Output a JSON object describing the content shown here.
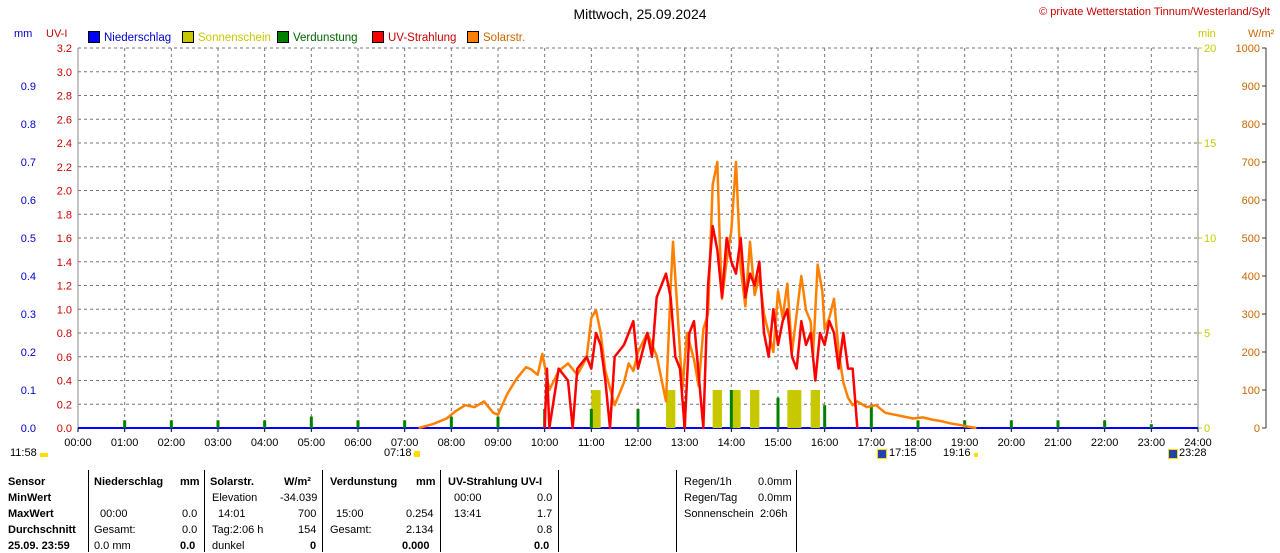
{
  "header": {
    "title": "Mittwoch, 25.09.2024",
    "credit": "© private Wetterstation Tinnum/Westerland/Sylt"
  },
  "axis_units": {
    "left_outer": "mm",
    "left_inner": "UV-I",
    "right_inner": "min",
    "right_outer": "W/m²"
  },
  "legend": [
    {
      "label": "Niederschlag",
      "color": "#0000ff"
    },
    {
      "label": "Sonnenschein",
      "color": "#c8c800"
    },
    {
      "label": "Verdunstung",
      "color": "#008000"
    },
    {
      "label": "UV-Strahlung",
      "color": "#ff0000"
    },
    {
      "label": "Solarstr.",
      "color": "#ff8000"
    }
  ],
  "astro": {
    "moonrise": "11:58",
    "sunrise": "07:18",
    "moonset": "17:15",
    "sunset": "19:16",
    "last": "23:28"
  },
  "chart_data": {
    "type": "line",
    "x_ticks": [
      "00:00",
      "01:00",
      "02:00",
      "03:00",
      "04:00",
      "05:00",
      "06:00",
      "07:00",
      "08:00",
      "09:00",
      "10:00",
      "11:00",
      "12:00",
      "13:00",
      "14:00",
      "15:00",
      "16:00",
      "17:00",
      "18:00",
      "19:00",
      "20:00",
      "21:00",
      "22:00",
      "23:00",
      "24:00"
    ],
    "y_axes": {
      "precip_mm": {
        "ticks": [
          "0.0",
          "0.1",
          "0.2",
          "0.3",
          "0.4",
          "0.5",
          "0.6",
          "0.7",
          "0.8",
          "0.9"
        ],
        "range": [
          0,
          1.0
        ]
      },
      "uv_index": {
        "ticks": [
          "0.0",
          "0.2",
          "0.4",
          "0.6",
          "0.8",
          "1.0",
          "1.2",
          "1.4",
          "1.6",
          "1.8",
          "2.0",
          "2.2",
          "2.4",
          "2.6",
          "2.8",
          "3.0",
          "3.2"
        ],
        "range": [
          0,
          3.2
        ]
      },
      "sunshine_min": {
        "ticks": [
          "0",
          "5",
          "10",
          "15",
          "20"
        ],
        "range": [
          0,
          20
        ]
      },
      "solar_wm2": {
        "ticks": [
          "0",
          "100",
          "200",
          "300",
          "400",
          "500",
          "600",
          "700",
          "800",
          "900",
          "1000"
        ],
        "range": [
          0,
          1000
        ]
      }
    },
    "series": [
      {
        "name": "Solarstr.",
        "color": "#ff8000",
        "x": [
          7.3,
          7.6,
          7.9,
          8.1,
          8.3,
          8.5,
          8.7,
          8.9,
          9.0,
          9.2,
          9.4,
          9.6,
          9.7,
          9.85,
          9.95,
          10.1,
          10.3,
          10.5,
          10.7,
          10.9,
          11.0,
          11.1,
          11.2,
          11.3,
          11.5,
          11.7,
          11.8,
          11.9,
          12.0,
          12.2,
          12.4,
          12.6,
          12.7,
          12.75,
          12.85,
          12.95,
          13.05,
          13.2,
          13.3,
          13.4,
          13.5,
          13.6,
          13.7,
          13.75,
          13.8,
          13.9,
          14.0,
          14.05,
          14.1,
          14.2,
          14.3,
          14.4,
          14.5,
          14.6,
          14.7,
          14.8,
          14.9,
          15.0,
          15.1,
          15.2,
          15.3,
          15.4,
          15.5,
          15.6,
          15.7,
          15.75,
          15.85,
          15.95,
          16.0,
          16.1,
          16.2,
          16.3,
          16.4,
          16.5,
          16.6,
          16.7,
          16.9,
          17.1,
          17.3,
          17.5,
          17.7,
          17.9,
          18.1,
          18.3,
          18.5,
          18.7,
          18.9,
          19.1,
          19.25
        ],
        "values": [
          0,
          10,
          25,
          45,
          60,
          55,
          70,
          40,
          35,
          90,
          130,
          160,
          155,
          140,
          195,
          100,
          150,
          170,
          140,
          185,
          290,
          310,
          250,
          150,
          60,
          120,
          170,
          150,
          200,
          250,
          190,
          70,
          370,
          490,
          300,
          100,
          250,
          180,
          110,
          260,
          300,
          640,
          700,
          500,
          340,
          440,
          520,
          610,
          700,
          420,
          320,
          490,
          350,
          400,
          300,
          250,
          200,
          360,
          290,
          380,
          200,
          300,
          400,
          310,
          280,
          190,
          430,
          360,
          260,
          290,
          340,
          200,
          120,
          80,
          60,
          70,
          55,
          60,
          40,
          35,
          30,
          25,
          28,
          22,
          18,
          12,
          8,
          3,
          0
        ]
      },
      {
        "name": "UV-Strahlung",
        "color": "#ff0000",
        "x": [
          10.0,
          10.05,
          10.1,
          10.3,
          10.5,
          10.6,
          10.7,
          10.9,
          11.0,
          11.1,
          11.2,
          11.3,
          11.4,
          11.5,
          11.7,
          11.9,
          12.0,
          12.2,
          12.3,
          12.4,
          12.6,
          12.7,
          12.8,
          12.9,
          13.0,
          13.1,
          13.2,
          13.4,
          13.5,
          13.6,
          13.7,
          13.8,
          13.9,
          14.0,
          14.1,
          14.2,
          14.3,
          14.4,
          14.5,
          14.6,
          14.7,
          14.8,
          14.9,
          15.0,
          15.1,
          15.2,
          15.3,
          15.4,
          15.5,
          15.6,
          15.7,
          15.8,
          15.9,
          16.0,
          16.1,
          16.2,
          16.3,
          16.4,
          16.5,
          16.6,
          16.7
        ],
        "values": [
          0,
          0.5,
          0.0,
          0.5,
          0.4,
          0.0,
          0.5,
          0.6,
          0.5,
          0.8,
          0.7,
          0.4,
          0.0,
          0.6,
          0.7,
          0.9,
          0.5,
          0.8,
          0.6,
          1.1,
          1.3,
          1.1,
          0.6,
          0.5,
          0.0,
          0.8,
          0.9,
          0.0,
          1.2,
          1.7,
          1.5,
          1.1,
          1.6,
          1.4,
          1.3,
          1.6,
          1.1,
          1.3,
          1.2,
          1.4,
          0.8,
          0.6,
          1.0,
          0.7,
          0.9,
          1.0,
          0.6,
          0.5,
          0.9,
          0.7,
          0.8,
          0.4,
          0.8,
          0.7,
          0.9,
          0.8,
          0.5,
          0.8,
          0.5,
          0.5,
          0.0
        ]
      },
      {
        "name": "Sonnenschein",
        "color": "#c8c800",
        "x": [
          11.0,
          11.2,
          12.6,
          12.8,
          13.6,
          13.8,
          14.0,
          14.2,
          14.4,
          14.6,
          15.2,
          15.5,
          15.7,
          15.9
        ],
        "values": [
          2,
          2,
          2,
          2,
          2,
          2,
          2,
          2,
          2,
          2,
          2,
          2,
          2,
          2
        ]
      },
      {
        "name": "Verdunstung",
        "color": "#008000",
        "x": [
          1,
          2,
          3,
          4,
          5,
          6,
          7,
          8,
          9,
          10,
          11,
          12,
          13,
          14,
          15,
          16,
          17,
          18,
          19,
          20,
          21,
          22,
          23
        ],
        "values": [
          0.02,
          0.02,
          0.02,
          0.02,
          0.03,
          0.02,
          0.02,
          0.03,
          0.03,
          0.05,
          0.05,
          0.05,
          0.07,
          0.1,
          0.08,
          0.06,
          0.06,
          0.02,
          0.02,
          0.02,
          0.02,
          0.02,
          0.01
        ]
      }
    ]
  },
  "summary_table": {
    "col_sensor": {
      "header": "Sensor",
      "rows": [
        "MinWert",
        "MaxWert",
        "Durchschnitt",
        "25.09. 23:59"
      ]
    },
    "col_precip": {
      "header": "Niederschlag",
      "unit": "mm",
      "rows": [
        [
          "",
          ""
        ],
        [
          "00:00",
          "0.0"
        ],
        [
          "Gesamt:",
          "0.0"
        ],
        [
          "0.0 mm",
          "0.0"
        ]
      ]
    },
    "col_solar": {
      "header": "Solarstr.",
      "unit": "W/m²",
      "rows": [
        [
          "Elevation",
          "-34.039"
        ],
        [
          "14:01",
          "700"
        ],
        [
          "Tag:2:06 h",
          "154"
        ],
        [
          "dunkel",
          "0"
        ]
      ]
    },
    "col_evap": {
      "header": "Verdunstung",
      "unit": "mm",
      "rows": [
        [
          "",
          ""
        ],
        [
          "15:00",
          "0.254"
        ],
        [
          "Gesamt:",
          "2.134"
        ],
        [
          "",
          "0.000"
        ]
      ]
    },
    "col_uv": {
      "header": "UV-Strahlung UV-I",
      "rows": [
        [
          "00:00",
          "0.0"
        ],
        [
          "13:41",
          "1.7"
        ],
        [
          "",
          "0.8"
        ],
        [
          "",
          "0.0"
        ]
      ]
    },
    "extra": [
      {
        "label": "Regen/1h",
        "value": "0.0mm"
      },
      {
        "label": "Regen/Tag",
        "value": "0.0mm"
      },
      {
        "label": "Sonnenschein",
        "value": "2:06h"
      }
    ]
  }
}
